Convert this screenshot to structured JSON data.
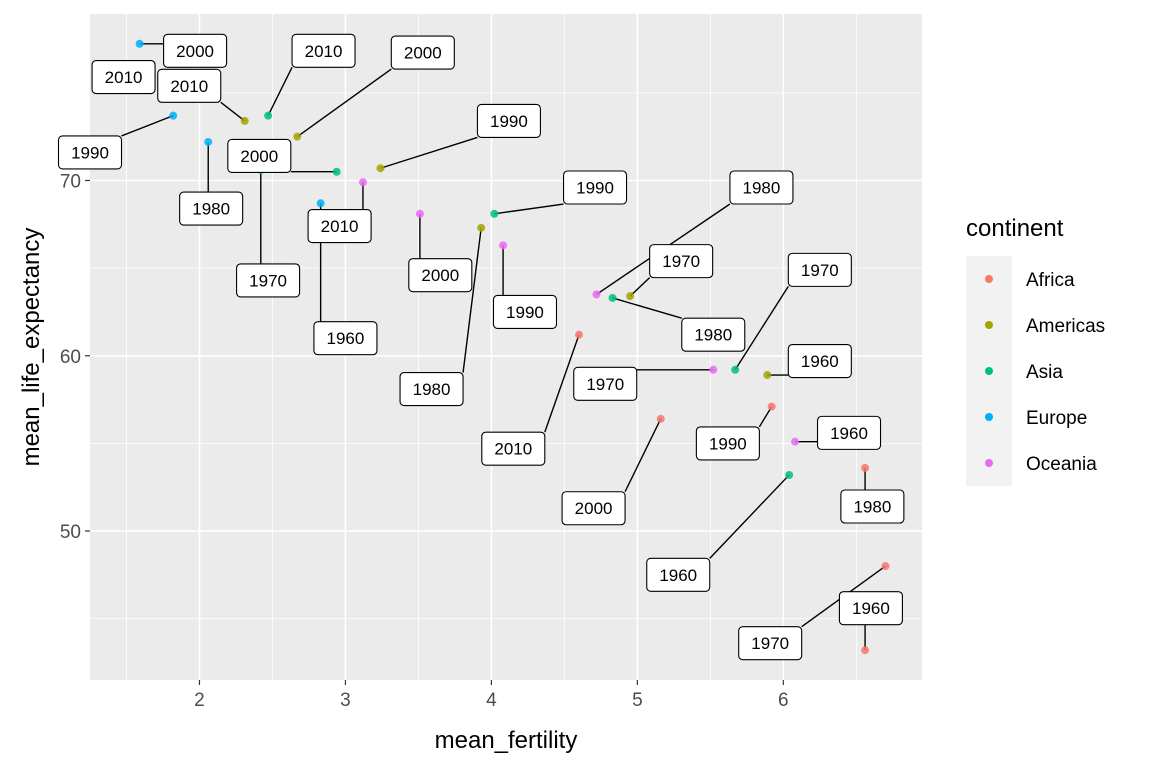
{
  "chart_data": {
    "type": "scatter",
    "xlabel": "mean_fertility",
    "ylabel": "mean_life_expectancy",
    "xlim": [
      1.25,
      6.95
    ],
    "ylim": [
      41.5,
      79.5
    ],
    "x_ticks": [
      2,
      3,
      4,
      5,
      6
    ],
    "y_ticks": [
      50,
      60,
      70
    ],
    "grid": true,
    "legend": {
      "title": "continent",
      "position": "right",
      "entries": [
        "Africa",
        "Americas",
        "Asia",
        "Europe",
        "Oceania"
      ]
    },
    "colors": {
      "Africa": "#F8766D",
      "Americas": "#A3A500",
      "Asia": "#00BF7D",
      "Europe": "#00B0F6",
      "Oceania": "#E76BF3"
    },
    "points": [
      {
        "continent": "Africa",
        "year": "1960",
        "x": 6.56,
        "y": 43.2,
        "lx": 6.6,
        "ly": 45.6
      },
      {
        "continent": "Africa",
        "year": "1970",
        "x": 6.7,
        "y": 48.0,
        "lx": 5.91,
        "ly": 43.6
      },
      {
        "continent": "Africa",
        "year": "1980",
        "x": 6.56,
        "y": 53.6,
        "lx": 6.61,
        "ly": 51.4
      },
      {
        "continent": "Africa",
        "year": "1990",
        "x": 5.92,
        "y": 57.1,
        "lx": 5.62,
        "ly": 55.0
      },
      {
        "continent": "Africa",
        "year": "2000",
        "x": 5.16,
        "y": 56.4,
        "lx": 4.7,
        "ly": 51.3
      },
      {
        "continent": "Africa",
        "year": "2010",
        "x": 4.6,
        "y": 61.2,
        "lx": 4.15,
        "ly": 54.7
      },
      {
        "continent": "Americas",
        "year": "1960",
        "x": 5.89,
        "y": 58.9,
        "lx": 6.25,
        "ly": 59.7
      },
      {
        "continent": "Americas",
        "year": "1970",
        "x": 4.95,
        "y": 63.4,
        "lx": 5.3,
        "ly": 65.4
      },
      {
        "continent": "Americas",
        "year": "1980",
        "x": 3.93,
        "y": 67.3,
        "lx": 3.59,
        "ly": 58.1
      },
      {
        "continent": "Americas",
        "year": "1990",
        "x": 3.24,
        "y": 70.7,
        "lx": 4.12,
        "ly": 73.4
      },
      {
        "continent": "Americas",
        "year": "2000",
        "x": 2.67,
        "y": 72.5,
        "lx": 3.53,
        "ly": 77.3
      },
      {
        "continent": "Americas",
        "year": "2010",
        "x": 2.31,
        "y": 73.4,
        "lx": 1.93,
        "ly": 75.4
      },
      {
        "continent": "Asia",
        "year": "1960",
        "x": 6.04,
        "y": 53.2,
        "lx": 5.28,
        "ly": 47.5
      },
      {
        "continent": "Asia",
        "year": "1970",
        "x": 5.67,
        "y": 59.2,
        "lx": 6.25,
        "ly": 64.9
      },
      {
        "continent": "Asia",
        "year": "1980",
        "x": 4.83,
        "y": 63.3,
        "lx": 5.52,
        "ly": 61.2
      },
      {
        "continent": "Asia",
        "year": "1990",
        "x": 4.02,
        "y": 68.1,
        "lx": 4.71,
        "ly": 69.6
      },
      {
        "continent": "Asia",
        "year": "2000",
        "x": 2.94,
        "y": 70.5,
        "lx": 2.41,
        "ly": 71.4
      },
      {
        "continent": "Asia",
        "year": "2010",
        "x": 2.47,
        "y": 73.7,
        "lx": 2.85,
        "ly": 77.4
      },
      {
        "continent": "Europe",
        "year": "1960",
        "x": 2.83,
        "y": 68.7,
        "lx": 3.0,
        "ly": 61.0
      },
      {
        "continent": "Europe",
        "year": "1970",
        "x": 2.42,
        "y": 70.6,
        "lx": 2.47,
        "ly": 64.3
      },
      {
        "continent": "Europe",
        "year": "1980",
        "x": 2.06,
        "y": 72.2,
        "lx": 2.08,
        "ly": 68.4
      },
      {
        "continent": "Europe",
        "year": "1990",
        "x": 1.82,
        "y": 73.7,
        "lx": 1.25,
        "ly": 71.6
      },
      {
        "continent": "Europe",
        "year": "2000",
        "x": 1.59,
        "y": 77.8,
        "lx": 1.97,
        "ly": 77.4
      },
      {
        "continent": "Europe",
        "year": "2010",
        "x": 1.48,
        "y": 75.3,
        "lx": 1.48,
        "ly": 75.9
      },
      {
        "continent": "Oceania",
        "year": "1960",
        "x": 6.08,
        "y": 55.1,
        "lx": 6.45,
        "ly": 55.6
      },
      {
        "continent": "Oceania",
        "year": "1970",
        "x": 5.52,
        "y": 59.2,
        "lx": 4.78,
        "ly": 58.4
      },
      {
        "continent": "Oceania",
        "year": "1980",
        "x": 4.72,
        "y": 63.5,
        "lx": 5.85,
        "ly": 69.6
      },
      {
        "continent": "Oceania",
        "year": "1990",
        "x": 4.08,
        "y": 66.3,
        "lx": 4.23,
        "ly": 62.5
      },
      {
        "continent": "Oceania",
        "year": "2000",
        "x": 3.51,
        "y": 68.1,
        "lx": 3.65,
        "ly": 64.6
      },
      {
        "continent": "Oceania",
        "year": "2010",
        "x": 3.12,
        "y": 69.9,
        "lx": 2.96,
        "ly": 67.4
      }
    ]
  }
}
